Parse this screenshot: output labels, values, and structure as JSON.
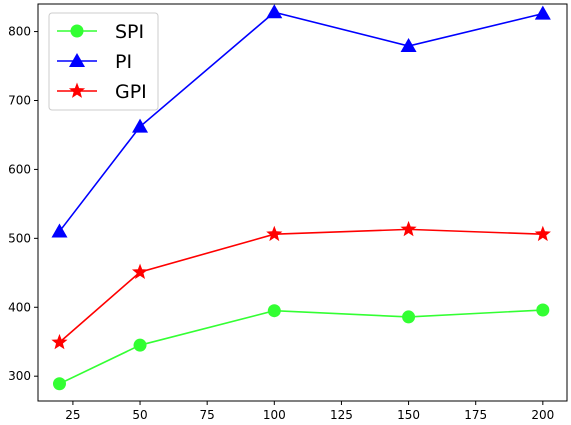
{
  "chart_data": {
    "type": "line",
    "x": [
      20,
      50,
      100,
      150,
      200
    ],
    "xlim": [
      12,
      209
    ],
    "ylim": [
      264,
      840
    ],
    "xticks": [
      25,
      50,
      75,
      100,
      125,
      150,
      175,
      200
    ],
    "yticks": [
      300,
      400,
      500,
      600,
      700,
      800
    ],
    "grid": false,
    "legend_position": "top-left",
    "series": [
      {
        "name": "SPI",
        "values": [
          289,
          345,
          395,
          386,
          396
        ],
        "color": "#33ff33",
        "marker": "circle"
      },
      {
        "name": "PI",
        "values": [
          510,
          662,
          828,
          779,
          826
        ],
        "color": "#0000ff",
        "marker": "triangle"
      },
      {
        "name": "GPI",
        "values": [
          349,
          451,
          506,
          513,
          506
        ],
        "color": "#ff0000",
        "marker": "star"
      }
    ]
  }
}
